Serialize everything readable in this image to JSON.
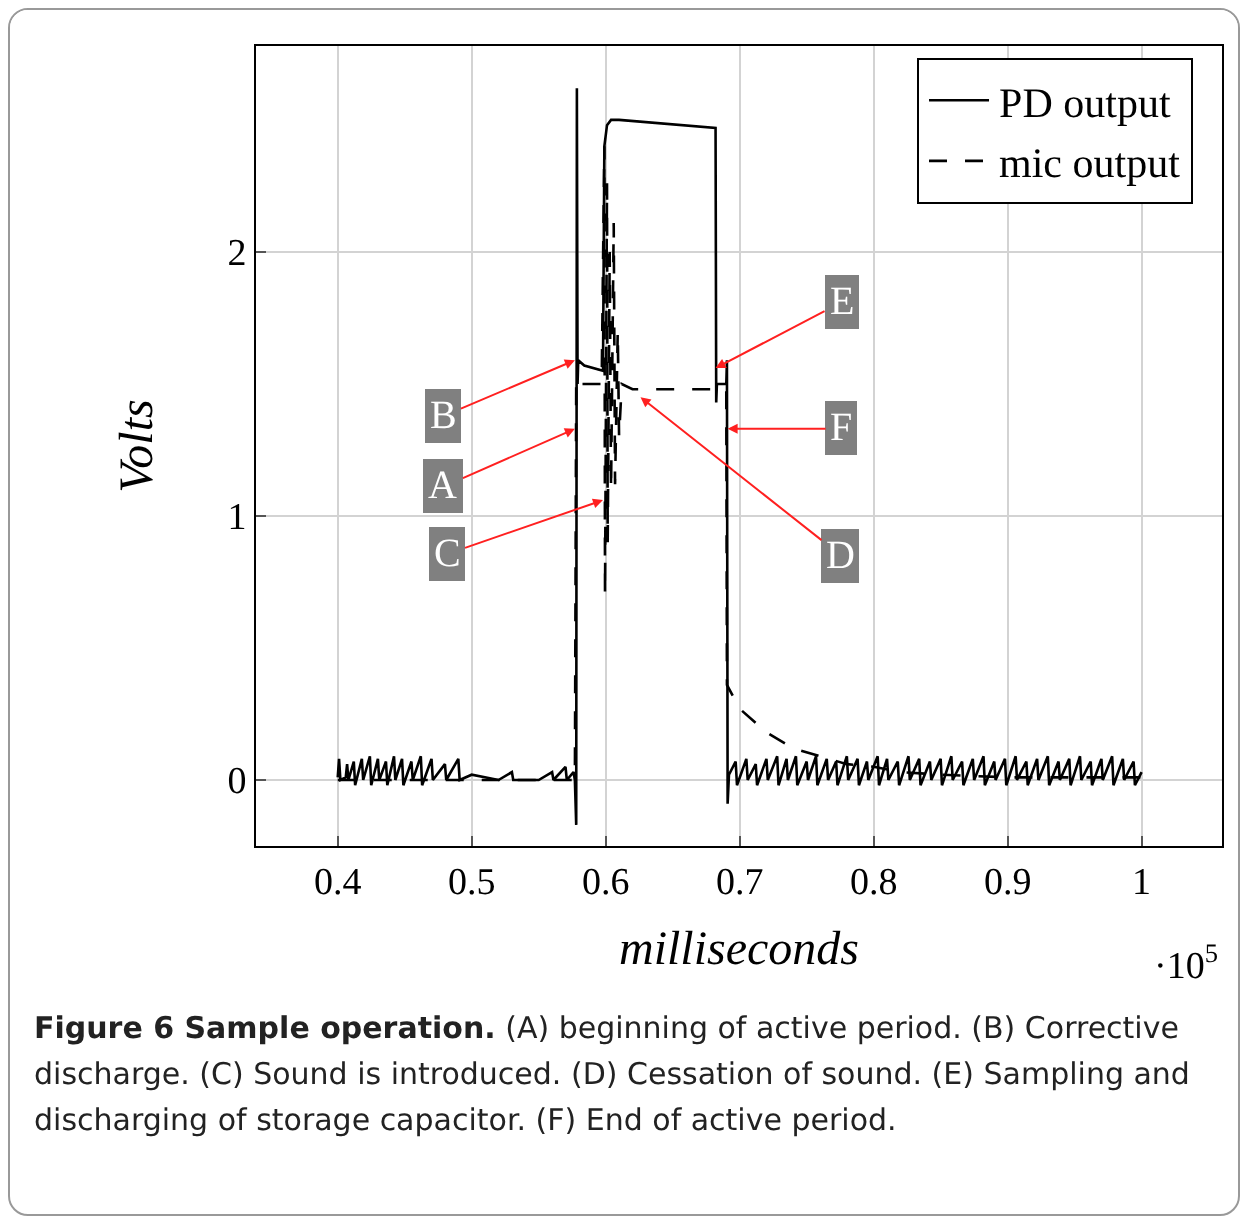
{
  "chart_data": {
    "type": "line",
    "title": "Figure 6 Sample operation.",
    "xlabel": "milliseconds",
    "ylabel": "Volts",
    "annotations": [
      {
        "text": "A",
        "x": 0.577,
        "y": 1.33
      },
      {
        "text": "B",
        "x": 0.577,
        "y": 1.59
      },
      {
        "text": "C",
        "x": 0.598,
        "y": 1.06
      },
      {
        "text": "D",
        "x": 0.626,
        "y": 1.45
      },
      {
        "text": "E",
        "x": 0.682,
        "y": 1.56
      },
      {
        "text": "F",
        "x": 0.691,
        "y": 1.33
      },
      "·10$^{5}$",
      "(A) beginning of active period. (B) Corrective discharge. (C) Sound is introduced. (D) Cessation of sound. (E) Sampling and discharging of storage capacitor. (F) End of active period."
    ],
    "xlim": [
      0.339,
      1.06
    ],
    "xticks": [
      {
        "value": 0.4,
        "label": "0.4"
      },
      {
        "value": 0.5,
        "label": "0.5"
      },
      {
        "value": 0.6,
        "label": "0.6"
      },
      {
        "value": 0.7,
        "label": "0.7"
      },
      {
        "value": 0.8,
        "label": "0.8"
      },
      {
        "value": 0.9,
        "label": "0.9"
      },
      1
    ],
    "ylim": [
      -0.25,
      2.78
    ],
    "yticks": [
      0,
      1,
      2
    ],
    "grid": true,
    "legend": "top right",
    "marker": "none",
    "series": [
      {
        "name": "PD output",
        "color": "#000000",
        "line_style": "solid",
        "x": [
          0.4,
          0.401,
          0.402,
          0.406,
          0.407,
          0.408,
          0.412,
          0.413,
          0.418,
          0.419,
          0.424,
          0.425,
          0.43,
          0.431,
          0.436,
          0.437,
          0.442,
          0.443,
          0.448,
          0.449,
          0.455,
          0.456,
          0.462,
          0.463,
          0.47,
          0.471,
          0.48,
          0.481,
          0.49,
          0.491,
          0.5,
          0.52,
          0.53,
          0.531,
          0.55,
          0.56,
          0.561,
          0.57,
          0.571,
          0.576,
          0.577,
          0.578,
          0.5785,
          0.579,
          0.5795,
          0.584,
          0.598,
          0.599,
          0.601,
          0.604,
          0.61,
          0.682,
          0.6825,
          0.683,
          0.69,
          0.6905,
          0.691,
          0.692,
          0.697,
          0.698,
          0.705,
          0.706,
          0.712,
          0.713,
          0.72,
          0.721,
          0.728,
          0.729,
          0.735,
          0.736,
          0.742,
          0.743,
          0.75,
          0.751,
          0.757,
          0.758,
          0.765,
          0.766,
          0.772,
          0.773,
          0.78,
          0.781,
          0.788,
          0.789,
          0.795,
          0.796,
          0.803,
          0.804,
          0.81,
          0.811,
          0.818,
          0.819,
          0.826,
          0.827,
          0.834,
          0.835,
          0.842,
          0.843,
          0.85,
          0.851,
          0.858,
          0.859,
          0.866,
          0.867,
          0.874,
          0.875,
          0.882,
          0.883,
          0.89,
          0.891,
          0.898,
          0.899,
          0.906,
          0.907,
          0.914,
          0.915,
          0.922,
          0.923,
          0.93,
          0.931,
          0.938,
          0.939,
          0.946,
          0.947,
          0.954,
          0.955,
          0.962,
          0.963,
          0.97,
          0.971,
          0.978,
          0.979,
          0.986,
          0.987,
          0.994,
          0.995,
          1.0
        ],
        "values": [
          0.01,
          0.08,
          0,
          0.01,
          0.06,
          0,
          0.07,
          -0.02,
          0.08,
          0,
          0.09,
          -0.02,
          0.08,
          0,
          0.07,
          -0.02,
          0.09,
          0,
          0.08,
          -0.02,
          0.07,
          0,
          0.09,
          -0.02,
          0.08,
          0,
          0.06,
          0,
          0.08,
          0,
          0.02,
          0,
          0.03,
          0,
          0,
          0.03,
          0,
          0.05,
          0,
          0.03,
          0,
          -0.17,
          2.62,
          1.5,
          1.59,
          1.57,
          1.55,
          2.4,
          2.48,
          2.5,
          2.5,
          2.47,
          1.43,
          1.5,
          1.5,
          1.59,
          -0.09,
          0.02,
          0.07,
          -0.02,
          0.08,
          0,
          0.06,
          -0.02,
          0.08,
          0,
          0.09,
          -0.02,
          0.08,
          0,
          0.09,
          -0.02,
          0.07,
          0,
          0.09,
          -0.02,
          0.08,
          0,
          0.07,
          -0.02,
          0.09,
          0,
          0.08,
          -0.02,
          0.07,
          0,
          0.09,
          -0.02,
          0.08,
          0,
          0.07,
          -0.02,
          0.09,
          0,
          0.08,
          -0.02,
          0.07,
          0,
          0.08,
          -0.02,
          0.09,
          0,
          0.07,
          -0.02,
          0.08,
          0,
          0.09,
          -0.02,
          0.07,
          0,
          0.08,
          -0.02,
          0.09,
          0,
          0.07,
          -0.02,
          0.08,
          0,
          0.09,
          -0.02,
          0.07,
          0,
          0.08,
          -0.02,
          0.09,
          0,
          0.07,
          -0.02,
          0.08,
          0,
          0.09,
          -0.02,
          0.08,
          0,
          0.07,
          -0.02,
          0.03
        ]
      },
      {
        "name": "mic output",
        "color": "#000000",
        "line_style": "dashed",
        "x": [
          0.4,
          0.577,
          0.578,
          0.58,
          0.597,
          0.599,
          0.5995,
          0.601,
          0.6015,
          0.603,
          0.604,
          0.606,
          0.607,
          0.609,
          0.61,
          0.612,
          0.62,
          0.68,
          0.69,
          0.6905,
          0.7,
          0.72,
          0.74,
          0.76,
          0.78,
          0.8,
          0.82,
          0.85,
          0.9,
          1.0
        ],
        "values": [
          0,
          0,
          1.52,
          1.5,
          1.5,
          2.4,
          0.7,
          2.26,
          0.9,
          2.0,
          1.1,
          2.11,
          1.12,
          1.7,
          1.3,
          1.5,
          1.48,
          1.48,
          1.48,
          0.36,
          0.27,
          0.18,
          0.12,
          0.09,
          0.06,
          0.05,
          0.03,
          0.02,
          0.01,
          0.01
        ]
      }
    ]
  }
}
